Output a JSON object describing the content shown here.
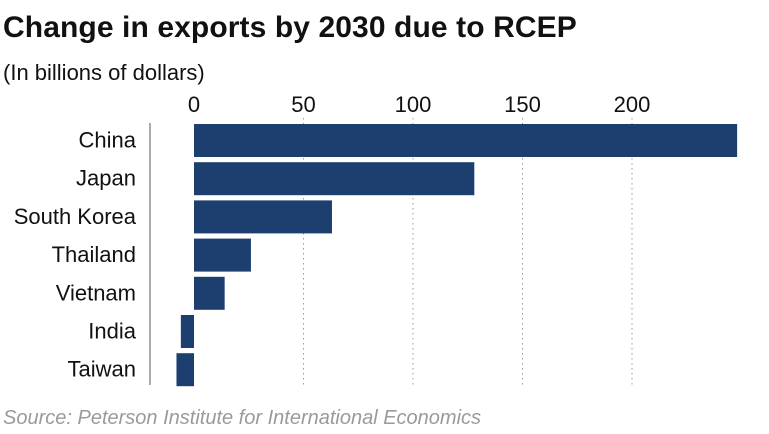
{
  "chart_data": {
    "type": "bar",
    "orientation": "horizontal",
    "title": "Change in exports by 2030 due to RCEP",
    "subtitle": "(In billions of dollars)",
    "source": "Source: Peterson Institute for International Economics",
    "categories": [
      "China",
      "Japan",
      "South Korea",
      "Thailand",
      "Vietnam",
      "India",
      "Taiwan"
    ],
    "values": [
      248,
      128,
      63,
      26,
      14,
      -6,
      -8
    ],
    "xticks": [
      0,
      50,
      100,
      150,
      200
    ],
    "xlim": [
      -8,
      248
    ],
    "xlabel": "",
    "ylabel": "",
    "grid": "vertical dotted",
    "bar_color": "#1c3f70"
  }
}
